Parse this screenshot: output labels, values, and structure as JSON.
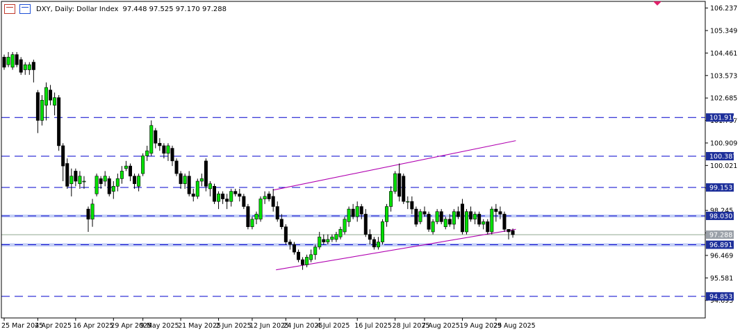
{
  "header": {
    "title": "DXY, Daily:  Dollar Index",
    "ohlc": "97.448 97.525 97.170 97.288"
  },
  "colors": {
    "bull": "#00e000",
    "bear": "#000000",
    "level_line": "#0000cc",
    "level_label_bg": "#1d2f9a",
    "channel": "#b000b0",
    "current_price_bg": "#9aa0a8",
    "band": "#b9c6f5"
  },
  "chart_data": {
    "type": "candlestick",
    "title": "DXY, Daily:  Dollar Index",
    "ylim": [
      94.0,
      106.5
    ],
    "price_ticks": [
      "106.237",
      "105.349",
      "104.461",
      "103.573",
      "102.685",
      "101.797",
      "100.909",
      "100.021",
      "99.133",
      "98.245",
      "97.357",
      "96.469",
      "95.581",
      "94.693"
    ],
    "date_ticks": [
      "25 Mar 2025",
      "4 Apr 2025",
      "16 Apr 2025",
      "29 Apr 2025",
      "9 May 2025",
      "21 May 2025",
      "2 Jun 2025",
      "12 Jun 2025",
      "24 Jun 2025",
      "4 Jul 2025",
      "16 Jul 2025",
      "28 Jul 2025",
      "7 Aug 2025",
      "19 Aug 2025",
      "29 Aug 2025"
    ],
    "levels": [
      {
        "label": "101.916",
        "value": 101.916
      },
      {
        "label": "100.387",
        "value": 100.387
      },
      {
        "label": "99.153",
        "value": 99.153
      },
      {
        "label": "98.030",
        "value": 98.03
      },
      {
        "label": "96.891",
        "value": 96.891
      },
      {
        "label": "94.853",
        "value": 94.853
      }
    ],
    "current_price": {
      "label": "97.288",
      "value": 97.288
    },
    "bands": [
      [
        97.97,
        98.08
      ],
      [
        96.82,
        96.95
      ]
    ],
    "channel": [
      {
        "from": [
          "2025-06-20",
          99.05
        ],
        "to": [
          "2025-09-10",
          101.0
        ]
      },
      {
        "from": [
          "2025-06-22",
          95.9
        ],
        "to": [
          "2025-09-10",
          97.5
        ]
      }
    ],
    "candles": [
      {
        "d": "2025-03-24",
        "o": 104.3,
        "h": 104.4,
        "l": 103.8,
        "c": 103.9
      },
      {
        "d": "2025-03-25",
        "o": 104.0,
        "h": 104.5,
        "l": 103.9,
        "c": 104.3
      },
      {
        "d": "2025-03-26",
        "o": 103.9,
        "h": 104.5,
        "l": 103.8,
        "c": 104.4
      },
      {
        "d": "2025-03-27",
        "o": 104.4,
        "h": 104.5,
        "l": 103.9,
        "c": 104.0
      },
      {
        "d": "2025-03-28",
        "o": 104.2,
        "h": 104.3,
        "l": 103.6,
        "c": 103.7
      },
      {
        "d": "2025-03-31",
        "o": 103.8,
        "h": 104.1,
        "l": 103.6,
        "c": 104.0
      },
      {
        "d": "2025-04-01",
        "o": 103.8,
        "h": 104.1,
        "l": 103.6,
        "c": 104.0
      },
      {
        "d": "2025-04-02",
        "o": 104.1,
        "h": 104.2,
        "l": 103.3,
        "c": 103.8
      },
      {
        "d": "2025-04-03",
        "o": 102.9,
        "h": 103.0,
        "l": 101.3,
        "c": 101.8
      },
      {
        "d": "2025-04-04",
        "o": 101.8,
        "h": 102.8,
        "l": 101.6,
        "c": 102.6
      },
      {
        "d": "2025-04-07",
        "o": 102.4,
        "h": 103.3,
        "l": 101.8,
        "c": 103.1
      },
      {
        "d": "2025-04-08",
        "o": 103.0,
        "h": 103.2,
        "l": 102.4,
        "c": 102.6
      },
      {
        "d": "2025-04-09",
        "o": 102.4,
        "h": 102.9,
        "l": 102.0,
        "c": 102.7
      },
      {
        "d": "2025-04-10",
        "o": 102.7,
        "h": 102.8,
        "l": 100.6,
        "c": 100.8
      },
      {
        "d": "2025-04-11",
        "o": 100.8,
        "h": 100.9,
        "l": 99.4,
        "c": 100.0
      },
      {
        "d": "2025-04-14",
        "o": 100.1,
        "h": 100.3,
        "l": 99.1,
        "c": 99.2
      },
      {
        "d": "2025-04-15",
        "o": 99.3,
        "h": 99.9,
        "l": 98.8,
        "c": 99.6
      },
      {
        "d": "2025-04-16",
        "o": 99.8,
        "h": 99.9,
        "l": 99.2,
        "c": 99.4
      },
      {
        "d": "2025-04-17",
        "o": 99.3,
        "h": 99.8,
        "l": 99.1,
        "c": 99.6
      },
      {
        "d": "2025-04-18",
        "o": 99.4,
        "h": 99.6,
        "l": 99.1,
        "c": 99.4
      },
      {
        "d": "2025-04-21",
        "o": 98.3,
        "h": 98.4,
        "l": 97.4,
        "c": 97.9
      },
      {
        "d": "2025-04-22",
        "o": 97.9,
        "h": 98.7,
        "l": 97.6,
        "c": 98.5
      },
      {
        "d": "2025-04-23",
        "o": 98.9,
        "h": 99.7,
        "l": 98.8,
        "c": 99.6
      },
      {
        "d": "2025-04-24",
        "o": 99.5,
        "h": 99.6,
        "l": 99.1,
        "c": 99.3
      },
      {
        "d": "2025-04-25",
        "o": 99.4,
        "h": 99.8,
        "l": 99.2,
        "c": 99.6
      },
      {
        "d": "2025-04-28",
        "o": 99.5,
        "h": 99.6,
        "l": 98.8,
        "c": 98.9
      },
      {
        "d": "2025-04-29",
        "o": 99.0,
        "h": 99.4,
        "l": 98.7,
        "c": 99.2
      },
      {
        "d": "2025-04-30",
        "o": 99.2,
        "h": 99.7,
        "l": 99.0,
        "c": 99.5
      },
      {
        "d": "2025-05-01",
        "o": 99.5,
        "h": 100.0,
        "l": 99.3,
        "c": 99.8
      },
      {
        "d": "2025-05-02",
        "o": 99.9,
        "h": 100.2,
        "l": 99.8,
        "c": 100.0
      },
      {
        "d": "2025-05-05",
        "o": 100.0,
        "h": 100.1,
        "l": 99.4,
        "c": 99.6
      },
      {
        "d": "2025-05-06",
        "o": 99.6,
        "h": 99.7,
        "l": 99.1,
        "c": 99.3
      },
      {
        "d": "2025-05-07",
        "o": 99.2,
        "h": 99.7,
        "l": 99.0,
        "c": 99.6
      },
      {
        "d": "2025-05-08",
        "o": 99.7,
        "h": 100.5,
        "l": 99.6,
        "c": 100.4
      },
      {
        "d": "2025-05-09",
        "o": 100.4,
        "h": 100.8,
        "l": 100.2,
        "c": 100.6
      },
      {
        "d": "2025-05-12",
        "o": 100.5,
        "h": 101.8,
        "l": 100.4,
        "c": 101.6
      },
      {
        "d": "2025-05-13",
        "o": 101.4,
        "h": 101.5,
        "l": 100.7,
        "c": 100.9
      },
      {
        "d": "2025-05-14",
        "o": 100.9,
        "h": 101.1,
        "l": 100.6,
        "c": 100.8
      },
      {
        "d": "2025-05-15",
        "o": 100.8,
        "h": 100.9,
        "l": 100.3,
        "c": 100.5
      },
      {
        "d": "2025-05-16",
        "o": 100.5,
        "h": 100.9,
        "l": 100.2,
        "c": 100.8
      },
      {
        "d": "2025-05-19",
        "o": 100.7,
        "h": 100.8,
        "l": 100.0,
        "c": 100.2
      },
      {
        "d": "2025-05-20",
        "o": 100.2,
        "h": 100.3,
        "l": 99.6,
        "c": 99.7
      },
      {
        "d": "2025-05-21",
        "o": 99.7,
        "h": 99.8,
        "l": 99.1,
        "c": 99.3
      },
      {
        "d": "2025-05-22",
        "o": 99.3,
        "h": 99.7,
        "l": 99.1,
        "c": 99.6
      },
      {
        "d": "2025-05-23",
        "o": 99.6,
        "h": 99.8,
        "l": 98.8,
        "c": 98.9
      },
      {
        "d": "2025-05-26",
        "o": 98.9,
        "h": 99.1,
        "l": 98.6,
        "c": 98.8
      },
      {
        "d": "2025-05-27",
        "o": 98.8,
        "h": 99.5,
        "l": 98.7,
        "c": 99.4
      },
      {
        "d": "2025-05-28",
        "o": 99.4,
        "h": 99.7,
        "l": 99.2,
        "c": 99.5
      },
      {
        "d": "2025-05-29",
        "o": 100.2,
        "h": 100.3,
        "l": 99.0,
        "c": 99.2
      },
      {
        "d": "2025-05-30",
        "o": 99.1,
        "h": 99.4,
        "l": 98.8,
        "c": 99.3
      },
      {
        "d": "2025-06-02",
        "o": 99.2,
        "h": 99.3,
        "l": 98.5,
        "c": 98.6
      },
      {
        "d": "2025-06-03",
        "o": 98.6,
        "h": 99.0,
        "l": 98.3,
        "c": 98.9
      },
      {
        "d": "2025-06-04",
        "o": 98.9,
        "h": 99.0,
        "l": 98.5,
        "c": 98.7
      },
      {
        "d": "2025-06-05",
        "o": 98.7,
        "h": 98.9,
        "l": 98.3,
        "c": 98.6
      },
      {
        "d": "2025-06-06",
        "o": 98.6,
        "h": 99.1,
        "l": 98.4,
        "c": 99.0
      },
      {
        "d": "2025-06-09",
        "o": 99.0,
        "h": 99.1,
        "l": 98.8,
        "c": 98.9
      },
      {
        "d": "2025-06-10",
        "o": 98.9,
        "h": 99.1,
        "l": 98.6,
        "c": 98.8
      },
      {
        "d": "2025-06-11",
        "o": 98.8,
        "h": 98.9,
        "l": 98.3,
        "c": 98.4
      },
      {
        "d": "2025-06-12",
        "o": 98.4,
        "h": 98.5,
        "l": 97.5,
        "c": 97.6
      },
      {
        "d": "2025-06-13",
        "o": 97.6,
        "h": 98.0,
        "l": 97.5,
        "c": 97.9
      },
      {
        "d": "2025-06-16",
        "o": 97.9,
        "h": 98.2,
        "l": 97.7,
        "c": 98.1
      },
      {
        "d": "2025-06-17",
        "o": 97.9,
        "h": 98.8,
        "l": 97.8,
        "c": 98.7
      },
      {
        "d": "2025-06-18",
        "o": 98.7,
        "h": 99.0,
        "l": 98.5,
        "c": 98.8
      },
      {
        "d": "2025-06-19",
        "o": 98.9,
        "h": 99.0,
        "l": 98.6,
        "c": 98.7
      },
      {
        "d": "2025-06-20",
        "o": 98.8,
        "h": 99.1,
        "l": 98.2,
        "c": 98.4
      },
      {
        "d": "2025-06-23",
        "o": 98.4,
        "h": 98.6,
        "l": 97.8,
        "c": 97.9
      },
      {
        "d": "2025-06-24",
        "o": 97.9,
        "h": 98.1,
        "l": 97.5,
        "c": 97.6
      },
      {
        "d": "2025-06-25",
        "o": 97.6,
        "h": 97.7,
        "l": 96.9,
        "c": 97.0
      },
      {
        "d": "2025-06-26",
        "o": 97.0,
        "h": 97.1,
        "l": 96.7,
        "c": 96.9
      },
      {
        "d": "2025-06-27",
        "o": 96.9,
        "h": 97.0,
        "l": 96.5,
        "c": 96.6
      },
      {
        "d": "2025-06-30",
        "o": 96.6,
        "h": 96.7,
        "l": 96.2,
        "c": 96.3
      },
      {
        "d": "2025-07-01",
        "o": 96.3,
        "h": 96.4,
        "l": 95.9,
        "c": 96.1
      },
      {
        "d": "2025-07-02",
        "o": 96.1,
        "h": 96.5,
        "l": 96.0,
        "c": 96.4
      },
      {
        "d": "2025-07-03",
        "o": 96.3,
        "h": 96.7,
        "l": 96.2,
        "c": 96.5
      },
      {
        "d": "2025-07-04",
        "o": 96.5,
        "h": 96.9,
        "l": 96.3,
        "c": 96.8
      },
      {
        "d": "2025-07-07",
        "o": 96.8,
        "h": 97.4,
        "l": 96.7,
        "c": 97.2
      },
      {
        "d": "2025-07-08",
        "o": 97.1,
        "h": 97.3,
        "l": 96.9,
        "c": 97.0
      },
      {
        "d": "2025-07-09",
        "o": 97.0,
        "h": 97.3,
        "l": 96.9,
        "c": 97.1
      },
      {
        "d": "2025-07-10",
        "o": 97.1,
        "h": 97.3,
        "l": 97.0,
        "c": 97.2
      },
      {
        "d": "2025-07-11",
        "o": 97.1,
        "h": 97.4,
        "l": 97.0,
        "c": 97.3
      },
      {
        "d": "2025-07-14",
        "o": 97.2,
        "h": 97.6,
        "l": 97.1,
        "c": 97.5
      },
      {
        "d": "2025-07-15",
        "o": 97.4,
        "h": 98.0,
        "l": 97.3,
        "c": 97.9
      },
      {
        "d": "2025-07-16",
        "o": 97.8,
        "h": 98.4,
        "l": 97.6,
        "c": 98.3
      },
      {
        "d": "2025-07-17",
        "o": 98.3,
        "h": 98.5,
        "l": 97.9,
        "c": 98.0
      },
      {
        "d": "2025-07-18",
        "o": 98.0,
        "h": 98.6,
        "l": 97.8,
        "c": 98.4
      },
      {
        "d": "2025-07-21",
        "o": 98.4,
        "h": 98.5,
        "l": 97.9,
        "c": 98.1
      },
      {
        "d": "2025-07-22",
        "o": 98.1,
        "h": 98.3,
        "l": 97.2,
        "c": 97.3
      },
      {
        "d": "2025-07-23",
        "o": 97.3,
        "h": 97.5,
        "l": 96.9,
        "c": 97.1
      },
      {
        "d": "2025-07-24",
        "o": 97.1,
        "h": 97.2,
        "l": 96.7,
        "c": 96.8
      },
      {
        "d": "2025-07-25",
        "o": 96.8,
        "h": 97.2,
        "l": 96.7,
        "c": 97.0
      },
      {
        "d": "2025-07-28",
        "o": 97.0,
        "h": 97.9,
        "l": 96.9,
        "c": 97.8
      },
      {
        "d": "2025-07-29",
        "o": 97.8,
        "h": 98.5,
        "l": 97.6,
        "c": 98.4
      },
      {
        "d": "2025-07-30",
        "o": 98.4,
        "h": 99.2,
        "l": 98.2,
        "c": 99.0
      },
      {
        "d": "2025-07-31",
        "o": 99.0,
        "h": 99.8,
        "l": 98.9,
        "c": 99.7
      },
      {
        "d": "2025-08-01",
        "o": 99.7,
        "h": 100.1,
        "l": 98.6,
        "c": 98.8
      },
      {
        "d": "2025-08-04",
        "o": 99.6,
        "h": 99.7,
        "l": 98.5,
        "c": 98.6
      },
      {
        "d": "2025-08-05",
        "o": 98.6,
        "h": 98.8,
        "l": 98.3,
        "c": 98.6
      },
      {
        "d": "2025-08-06",
        "o": 98.6,
        "h": 98.8,
        "l": 98.1,
        "c": 98.3
      },
      {
        "d": "2025-08-07",
        "o": 98.3,
        "h": 98.4,
        "l": 97.6,
        "c": 97.7
      },
      {
        "d": "2025-08-08",
        "o": 97.8,
        "h": 98.3,
        "l": 97.7,
        "c": 98.2
      },
      {
        "d": "2025-08-11",
        "o": 98.2,
        "h": 98.4,
        "l": 98.0,
        "c": 98.1
      },
      {
        "d": "2025-08-12",
        "o": 98.1,
        "h": 98.2,
        "l": 97.4,
        "c": 97.5
      },
      {
        "d": "2025-08-13",
        "o": 97.4,
        "h": 97.9,
        "l": 97.3,
        "c": 97.8
      },
      {
        "d": "2025-08-14",
        "o": 97.8,
        "h": 98.3,
        "l": 97.7,
        "c": 98.2
      },
      {
        "d": "2025-08-15",
        "o": 98.2,
        "h": 98.3,
        "l": 97.7,
        "c": 97.8
      },
      {
        "d": "2025-08-18",
        "o": 97.6,
        "h": 98.0,
        "l": 97.5,
        "c": 97.9
      },
      {
        "d": "2025-08-19",
        "o": 97.9,
        "h": 98.1,
        "l": 97.6,
        "c": 97.7
      },
      {
        "d": "2025-08-20",
        "o": 97.7,
        "h": 98.3,
        "l": 97.5,
        "c": 98.2
      },
      {
        "d": "2025-08-21",
        "o": 98.2,
        "h": 98.4,
        "l": 97.9,
        "c": 98.0
      },
      {
        "d": "2025-08-22",
        "o": 98.5,
        "h": 98.7,
        "l": 97.3,
        "c": 97.4
      },
      {
        "d": "2025-08-25",
        "o": 97.4,
        "h": 98.3,
        "l": 97.3,
        "c": 98.2
      },
      {
        "d": "2025-08-26",
        "o": 98.2,
        "h": 98.4,
        "l": 97.8,
        "c": 97.9
      },
      {
        "d": "2025-08-27",
        "o": 97.9,
        "h": 98.2,
        "l": 97.7,
        "c": 98.1
      },
      {
        "d": "2025-08-28",
        "o": 98.1,
        "h": 98.2,
        "l": 97.6,
        "c": 97.7
      },
      {
        "d": "2025-08-29",
        "o": 97.7,
        "h": 97.9,
        "l": 97.5,
        "c": 97.8
      },
      {
        "d": "2025-09-01",
        "o": 97.8,
        "h": 97.9,
        "l": 97.3,
        "c": 97.4
      },
      {
        "d": "2025-09-02",
        "o": 97.4,
        "h": 98.4,
        "l": 97.3,
        "c": 98.3
      },
      {
        "d": "2025-09-03",
        "o": 98.3,
        "h": 98.5,
        "l": 97.8,
        "c": 98.2
      },
      {
        "d": "2025-09-04",
        "o": 98.2,
        "h": 98.4,
        "l": 97.9,
        "c": 98.1
      },
      {
        "d": "2025-09-05",
        "o": 98.1,
        "h": 98.2,
        "l": 97.4,
        "c": 97.5
      },
      {
        "d": "2025-09-08",
        "o": 97.5,
        "h": 97.5,
        "l": 97.1,
        "c": 97.4
      },
      {
        "d": "2025-09-09",
        "o": 97.45,
        "h": 97.53,
        "l": 97.17,
        "c": 97.29
      }
    ]
  }
}
